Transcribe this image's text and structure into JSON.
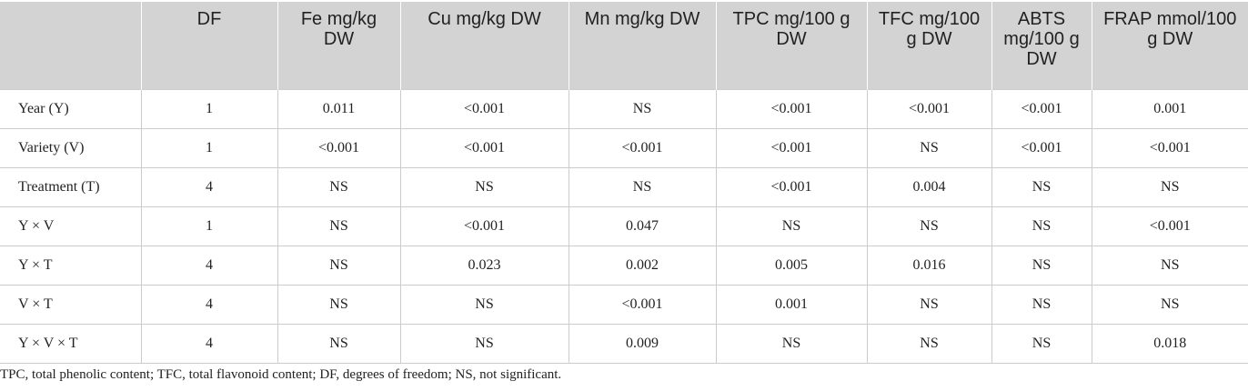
{
  "table": {
    "header": [
      "",
      "DF",
      "Fe mg/kg DW",
      "Cu mg/kg DW",
      "Mn mg/kg DW",
      "TPC mg/100 g DW",
      "TFC mg/100 g DW",
      "ABTS mg/100 g DW",
      "FRAP mmol/100 g DW"
    ],
    "rows": [
      [
        "Year (Y)",
        "1",
        "0.011",
        "<0.001",
        "NS",
        "<0.001",
        "<0.001",
        "<0.001",
        "0.001"
      ],
      [
        "Variety (V)",
        "1",
        "<0.001",
        "<0.001",
        "<0.001",
        "<0.001",
        "NS",
        "<0.001",
        "<0.001"
      ],
      [
        "Treatment (T)",
        "4",
        "NS",
        "NS",
        "NS",
        "<0.001",
        "0.004",
        "NS",
        "NS"
      ],
      [
        "Y × V",
        "1",
        "NS",
        "<0.001",
        "0.047",
        "NS",
        "NS",
        "NS",
        "<0.001"
      ],
      [
        "Y × T",
        "4",
        "NS",
        "0.023",
        "0.002",
        "0.005",
        "0.016",
        "NS",
        "NS"
      ],
      [
        "V × T",
        "4",
        "NS",
        "NS",
        "<0.001",
        "0.001",
        "NS",
        "NS",
        "NS"
      ],
      [
        "Y × V × T",
        "4",
        "NS",
        "NS",
        "0.009",
        "NS",
        "NS",
        "NS",
        "0.018"
      ]
    ],
    "footnote": "TPC, total phenolic content; TFC, total flavonoid content; DF, degrees of freedom; NS, not significant."
  }
}
